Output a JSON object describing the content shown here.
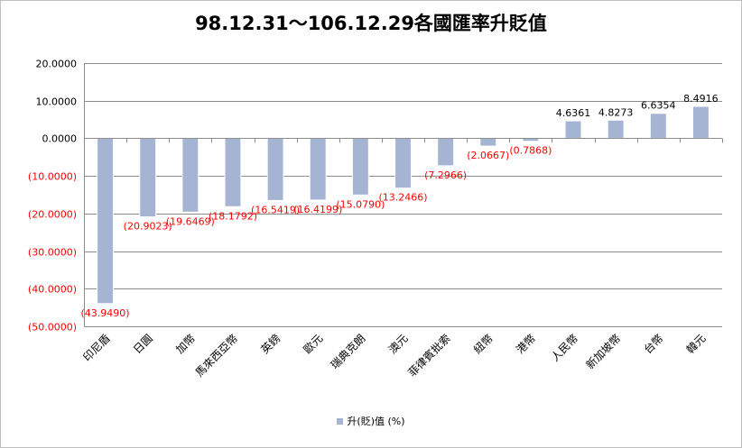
{
  "chart_data": {
    "type": "bar",
    "title": "98.12.31～106.12.29各國匯率升貶值",
    "xlabel": "",
    "ylabel": "",
    "categories": [
      "印尼盾",
      "日圓",
      "加幣",
      "馬來西亞幣",
      "英鎊",
      "歐元",
      "瑞典克朗",
      "澳元",
      "菲律賓批索",
      "紐幣",
      "港幣",
      "人民幣",
      "新加坡幣",
      "台幣",
      "韓元"
    ],
    "series": [
      {
        "name": "升(貶)值 (%)",
        "values": [
          -43.949,
          -20.9023,
          -19.6469,
          -18.1792,
          -16.5419,
          -16.4199,
          -15.079,
          -13.2466,
          -7.2966,
          -2.0667,
          -0.7868,
          4.6361,
          4.8273,
          6.6354,
          8.4916
        ],
        "data_labels": [
          "(43.9490)",
          "(20.9023)",
          "(19.6469)",
          "(18.1792)",
          "(16.5419)",
          "(16.4199)",
          "(15.0790)",
          "(13.2466)",
          "(7.2966)",
          "(2.0667)",
          "(0.7868)",
          "4.6361",
          "4.8273",
          "6.6354",
          "8.4916"
        ]
      }
    ],
    "ylim": [
      -50,
      20
    ],
    "yticks": [
      20,
      10,
      0,
      -10,
      -20,
      -30,
      -40,
      -50
    ],
    "ytick_labels": [
      "20.0000",
      "10.0000",
      "0.0000",
      "(10.0000)",
      "(20.0000)",
      "(30.0000)",
      "(40.0000)",
      "(50.0000)"
    ],
    "grid": true,
    "legend": "bottom",
    "colors": {
      "bar": "#a6b4d4",
      "bar_edge": "#ffffff",
      "positive_text": "#000000",
      "negative_text": "#ff0000",
      "grid": "#8c8c8c",
      "axis": "#8c8c8c"
    }
  }
}
